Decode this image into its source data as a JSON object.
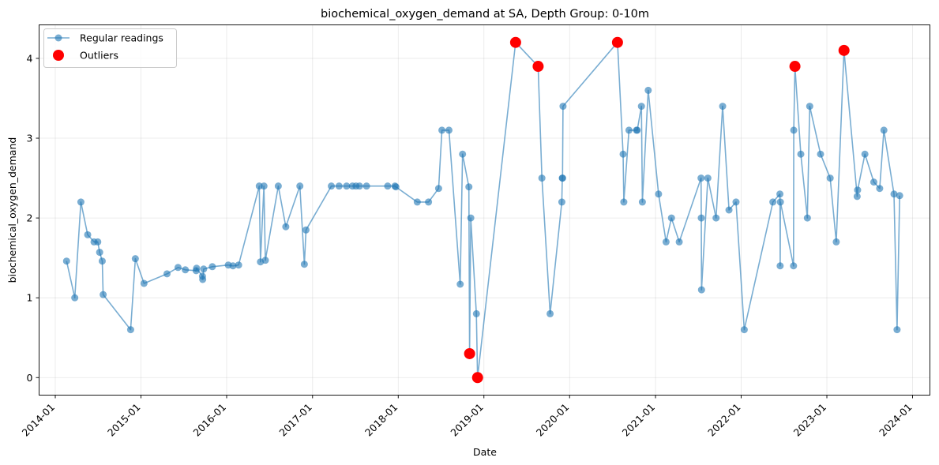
{
  "chart_data": {
    "type": "line",
    "title": "biochemical_oxygen_demand at SA, Depth Group: 0-10m",
    "xlabel": "Date",
    "ylabel": "biochemical_oxygen_demand",
    "xlim": [
      "2013-10-24",
      "2024-03-15"
    ],
    "ylim": [
      -0.22,
      4.42
    ],
    "yticks": [
      0,
      1,
      2,
      3,
      4
    ],
    "xticks": [
      "2014-01",
      "2015-01",
      "2016-01",
      "2017-01",
      "2018-01",
      "2019-01",
      "2020-01",
      "2021-01",
      "2022-01",
      "2023-01",
      "2024-01"
    ],
    "grid": true,
    "legend": {
      "position": "top-left",
      "entries": [
        {
          "label": "Regular readings",
          "color": "#1f77b4",
          "marker": "circle-line"
        },
        {
          "label": "Outliers",
          "color": "#ff0000",
          "marker": "circle"
        }
      ]
    },
    "series": [
      {
        "name": "Regular readings",
        "color": "#1f77b4",
        "points": [
          {
            "x": "2014-02-18",
            "y": 1.46
          },
          {
            "x": "2014-03-25",
            "y": 1.0
          },
          {
            "x": "2014-04-20",
            "y": 2.2
          },
          {
            "x": "2014-05-19",
            "y": 1.79
          },
          {
            "x": "2014-06-15",
            "y": 1.7
          },
          {
            "x": "2014-07-01",
            "y": 1.7
          },
          {
            "x": "2014-07-09",
            "y": 1.57
          },
          {
            "x": "2014-07-20",
            "y": 1.46
          },
          {
            "x": "2014-07-24",
            "y": 1.04
          },
          {
            "x": "2014-11-18",
            "y": 0.6
          },
          {
            "x": "2014-12-08",
            "y": 1.49
          },
          {
            "x": "2015-01-14",
            "y": 1.18
          },
          {
            "x": "2015-04-22",
            "y": 1.3
          },
          {
            "x": "2015-06-08",
            "y": 1.38
          },
          {
            "x": "2015-07-09",
            "y": 1.35
          },
          {
            "x": "2015-08-24",
            "y": 1.34
          },
          {
            "x": "2015-08-26",
            "y": 1.37
          },
          {
            "x": "2015-09-20",
            "y": 1.27
          },
          {
            "x": "2015-09-21",
            "y": 1.23
          },
          {
            "x": "2015-09-25",
            "y": 1.36
          },
          {
            "x": "2015-11-01",
            "y": 1.39
          },
          {
            "x": "2016-01-08",
            "y": 1.41
          },
          {
            "x": "2016-01-28",
            "y": 1.4
          },
          {
            "x": "2016-02-21",
            "y": 1.41
          },
          {
            "x": "2016-05-19",
            "y": 2.4
          },
          {
            "x": "2016-05-24",
            "y": 1.45
          },
          {
            "x": "2016-06-08",
            "y": 2.4
          },
          {
            "x": "2016-06-14",
            "y": 1.47
          },
          {
            "x": "2016-08-08",
            "y": 2.4
          },
          {
            "x": "2016-09-09",
            "y": 1.89
          },
          {
            "x": "2016-11-08",
            "y": 2.4
          },
          {
            "x": "2016-11-27",
            "y": 1.42
          },
          {
            "x": "2016-12-04",
            "y": 1.85
          },
          {
            "x": "2017-03-22",
            "y": 2.4
          },
          {
            "x": "2017-04-24",
            "y": 2.4
          },
          {
            "x": "2017-05-26",
            "y": 2.4
          },
          {
            "x": "2017-06-20",
            "y": 2.4
          },
          {
            "x": "2017-07-05",
            "y": 2.4
          },
          {
            "x": "2017-07-20",
            "y": 2.4
          },
          {
            "x": "2017-08-19",
            "y": 2.4
          },
          {
            "x": "2017-11-17",
            "y": 2.4
          },
          {
            "x": "2017-12-18",
            "y": 2.4
          },
          {
            "x": "2017-12-22",
            "y": 2.39
          },
          {
            "x": "2018-03-23",
            "y": 2.2
          },
          {
            "x": "2018-05-10",
            "y": 2.2
          },
          {
            "x": "2018-06-22",
            "y": 2.37
          },
          {
            "x": "2018-07-06",
            "y": 3.1
          },
          {
            "x": "2018-08-05",
            "y": 3.1
          },
          {
            "x": "2018-09-22",
            "y": 1.17
          },
          {
            "x": "2018-10-02",
            "y": 2.8
          },
          {
            "x": "2018-10-29",
            "y": 2.39
          },
          {
            "x": "2018-11-01",
            "y": 0.3
          },
          {
            "x": "2018-11-06",
            "y": 2.0
          },
          {
            "x": "2018-11-30",
            "y": 0.8
          },
          {
            "x": "2018-12-05",
            "y": 0.0
          },
          {
            "x": "2019-05-16",
            "y": 4.2
          },
          {
            "x": "2019-08-20",
            "y": 3.9
          },
          {
            "x": "2019-09-05",
            "y": 2.5
          },
          {
            "x": "2019-10-10",
            "y": 0.8
          },
          {
            "x": "2019-11-29",
            "y": 2.2
          },
          {
            "x": "2019-12-01",
            "y": 2.5
          },
          {
            "x": "2019-12-02",
            "y": 2.5
          },
          {
            "x": "2019-12-04",
            "y": 3.4
          },
          {
            "x": "2020-07-23",
            "y": 4.2
          },
          {
            "x": "2020-08-16",
            "y": 2.8
          },
          {
            "x": "2020-08-19",
            "y": 2.2
          },
          {
            "x": "2020-09-10",
            "y": 3.1
          },
          {
            "x": "2020-10-12",
            "y": 3.1
          },
          {
            "x": "2020-10-15",
            "y": 3.1
          },
          {
            "x": "2020-11-02",
            "y": 3.4
          },
          {
            "x": "2020-11-06",
            "y": 2.2
          },
          {
            "x": "2020-12-01",
            "y": 3.6
          },
          {
            "x": "2021-01-14",
            "y": 2.3
          },
          {
            "x": "2021-02-15",
            "y": 1.7
          },
          {
            "x": "2021-03-10",
            "y": 2.0
          },
          {
            "x": "2021-04-12",
            "y": 1.7
          },
          {
            "x": "2021-07-14",
            "y": 2.5
          },
          {
            "x": "2021-07-15",
            "y": 2.0
          },
          {
            "x": "2021-07-16",
            "y": 1.1
          },
          {
            "x": "2021-08-12",
            "y": 2.5
          },
          {
            "x": "2021-09-16",
            "y": 2.0
          },
          {
            "x": "2021-10-14",
            "y": 3.4
          },
          {
            "x": "2021-11-10",
            "y": 2.1
          },
          {
            "x": "2021-12-10",
            "y": 2.2
          },
          {
            "x": "2022-01-14",
            "y": 0.6
          },
          {
            "x": "2022-05-16",
            "y": 2.2
          },
          {
            "x": "2022-06-15",
            "y": 2.3
          },
          {
            "x": "2022-06-16",
            "y": 1.4
          },
          {
            "x": "2022-06-17",
            "y": 2.2
          },
          {
            "x": "2022-08-12",
            "y": 1.4
          },
          {
            "x": "2022-08-13",
            "y": 3.1
          },
          {
            "x": "2022-08-18",
            "y": 3.9
          },
          {
            "x": "2022-09-12",
            "y": 2.8
          },
          {
            "x": "2022-10-10",
            "y": 2.0
          },
          {
            "x": "2022-10-20",
            "y": 3.4
          },
          {
            "x": "2022-12-05",
            "y": 2.8
          },
          {
            "x": "2023-01-15",
            "y": 2.5
          },
          {
            "x": "2023-02-10",
            "y": 1.7
          },
          {
            "x": "2023-03-15",
            "y": 4.1
          },
          {
            "x": "2023-05-10",
            "y": 2.27
          },
          {
            "x": "2023-05-12",
            "y": 2.35
          },
          {
            "x": "2023-06-12",
            "y": 2.8
          },
          {
            "x": "2023-07-20",
            "y": 2.45
          },
          {
            "x": "2023-08-14",
            "y": 2.37
          },
          {
            "x": "2023-09-01",
            "y": 3.1
          },
          {
            "x": "2023-10-14",
            "y": 2.3
          },
          {
            "x": "2023-10-27",
            "y": 0.6
          },
          {
            "x": "2023-11-07",
            "y": 2.28
          }
        ]
      },
      {
        "name": "Outliers",
        "color": "#ff0000",
        "points": [
          {
            "x": "2018-11-01",
            "y": 0.3
          },
          {
            "x": "2018-12-05",
            "y": 0.0
          },
          {
            "x": "2019-05-16",
            "y": 4.2
          },
          {
            "x": "2019-08-20",
            "y": 3.9
          },
          {
            "x": "2020-07-23",
            "y": 4.2
          },
          {
            "x": "2022-08-18",
            "y": 3.9
          },
          {
            "x": "2023-03-15",
            "y": 4.1
          }
        ]
      }
    ]
  }
}
